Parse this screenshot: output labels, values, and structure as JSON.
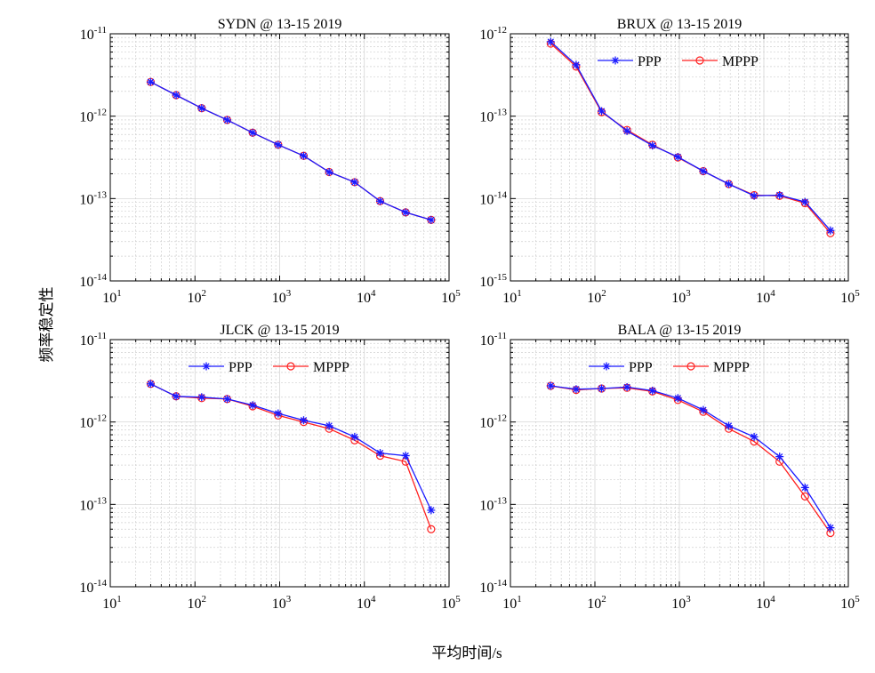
{
  "figure": {
    "ylabel": "频率稳定性",
    "xlabel": "平均时间/s"
  },
  "colors": {
    "ppp": "#1a1aff",
    "mppp": "#ff2020",
    "grid": "#d0d0d0"
  },
  "chart_data": [
    {
      "type": "line",
      "title": "SYDN @ 13-15 2019",
      "xscale": "log",
      "yscale": "log",
      "xlim": [
        10,
        100000
      ],
      "ylim": [
        1e-14,
        1e-11
      ],
      "grid": true,
      "legend": null,
      "x": [
        30,
        60,
        120,
        240,
        480,
        960,
        1920,
        3840,
        7680,
        15360,
        30720,
        61440
      ],
      "series": [
        {
          "name": "PPP",
          "color": "#1a1aff",
          "marker": "star",
          "values": [
            2.6e-12,
            1.8e-12,
            1.25e-12,
            9e-13,
            6.3e-13,
            4.5e-13,
            3.3e-13,
            2.1e-13,
            1.58e-13,
            9.3e-14,
            6.8e-14,
            5.5e-14
          ]
        },
        {
          "name": "MPPP",
          "color": "#ff2020",
          "marker": "circle",
          "values": [
            2.6e-12,
            1.8e-12,
            1.25e-12,
            9e-13,
            6.3e-13,
            4.5e-13,
            3.3e-13,
            2.1e-13,
            1.58e-13,
            9.3e-14,
            6.8e-14,
            5.5e-14
          ]
        }
      ]
    },
    {
      "type": "line",
      "title": "BRUX @ 13-15 2019",
      "xscale": "log",
      "yscale": "log",
      "xlim": [
        10,
        100000
      ],
      "ylim": [
        1e-15,
        1e-12
      ],
      "grid": true,
      "legend": {
        "position": "top-right",
        "entries": [
          "PPP",
          "MPPP"
        ]
      },
      "x": [
        30,
        60,
        120,
        240,
        480,
        960,
        1920,
        3840,
        7680,
        15360,
        30720,
        61440
      ],
      "series": [
        {
          "name": "PPP",
          "color": "#1a1aff",
          "marker": "star",
          "values": [
            8e-13,
            4.2e-13,
            1.15e-13,
            6.6e-14,
            4.4e-14,
            3.2e-14,
            2.15e-14,
            1.5e-14,
            1.08e-14,
            1.1e-14,
            9.1e-15,
            4.1e-15
          ]
        },
        {
          "name": "MPPP",
          "color": "#ff2020",
          "marker": "circle",
          "values": [
            7.6e-13,
            4e-13,
            1.12e-13,
            6.8e-14,
            4.5e-14,
            3.15e-14,
            2.15e-14,
            1.5e-14,
            1.1e-14,
            1.08e-14,
            8.8e-15,
            3.8e-15
          ]
        }
      ]
    },
    {
      "type": "line",
      "title": "JLCK @ 13-15 2019",
      "xscale": "log",
      "yscale": "log",
      "xlim": [
        10,
        100000
      ],
      "ylim": [
        1e-14,
        1e-11
      ],
      "grid": true,
      "legend": {
        "position": "top-right",
        "entries": [
          "PPP",
          "MPPP"
        ]
      },
      "x": [
        30,
        60,
        120,
        240,
        480,
        960,
        1920,
        3840,
        7680,
        15360,
        30720,
        61440
      ],
      "series": [
        {
          "name": "PPP",
          "color": "#1a1aff",
          "marker": "star",
          "values": [
            2.9e-12,
            2.05e-12,
            2e-12,
            1.9e-12,
            1.6e-12,
            1.27e-12,
            1.05e-12,
            9e-13,
            6.6e-13,
            4.2e-13,
            3.9e-13,
            8.5e-14
          ]
        },
        {
          "name": "MPPP",
          "color": "#ff2020",
          "marker": "circle",
          "values": [
            2.9e-12,
            2.05e-12,
            1.95e-12,
            1.9e-12,
            1.55e-12,
            1.2e-12,
            1e-12,
            8.3e-13,
            6e-13,
            3.9e-13,
            3.3e-13,
            5e-14
          ]
        }
      ]
    },
    {
      "type": "line",
      "title": "BALA @ 13-15 2019",
      "xscale": "log",
      "yscale": "log",
      "xlim": [
        10,
        100000
      ],
      "ylim": [
        1e-14,
        1e-11
      ],
      "grid": true,
      "legend": {
        "position": "top-right",
        "entries": [
          "PPP",
          "MPPP"
        ]
      },
      "x": [
        30,
        60,
        120,
        240,
        480,
        960,
        1920,
        3840,
        7680,
        15360,
        30720,
        61440
      ],
      "series": [
        {
          "name": "PPP",
          "color": "#1a1aff",
          "marker": "star",
          "values": [
            2.75e-12,
            2.5e-12,
            2.55e-12,
            2.65e-12,
            2.4e-12,
            1.95e-12,
            1.4e-12,
            9e-13,
            6.6e-13,
            3.8e-13,
            1.6e-13,
            5.2e-14
          ]
        },
        {
          "name": "MPPP",
          "color": "#ff2020",
          "marker": "circle",
          "values": [
            2.75e-12,
            2.45e-12,
            2.55e-12,
            2.6e-12,
            2.35e-12,
            1.85e-12,
            1.33e-12,
            8.3e-13,
            5.8e-13,
            3.3e-13,
            1.25e-13,
            4.5e-14
          ]
        }
      ]
    }
  ]
}
